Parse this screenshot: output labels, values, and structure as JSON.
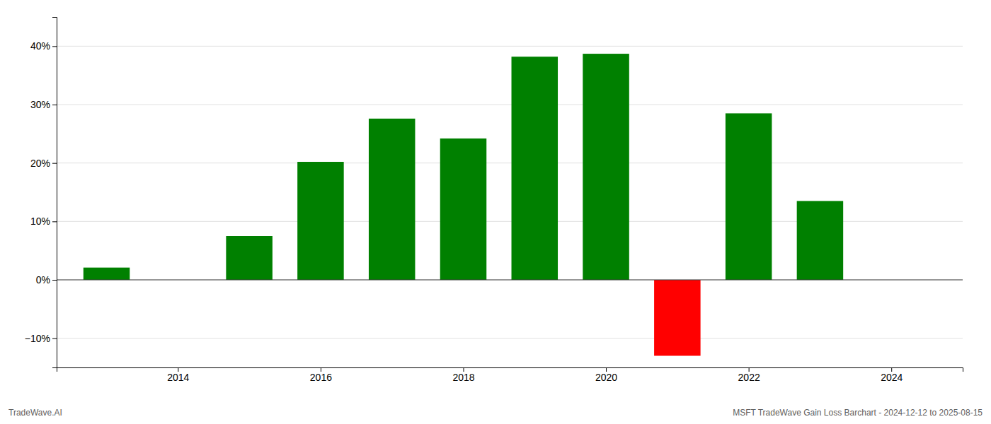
{
  "chart_data": {
    "type": "bar",
    "x": [
      2013,
      2015,
      2016,
      2017,
      2018,
      2019,
      2020,
      2021,
      2022,
      2023
    ],
    "values": [
      2.1,
      7.5,
      20.2,
      27.6,
      24.2,
      38.2,
      38.7,
      -13.0,
      28.5,
      13.5
    ],
    "colors": [
      "#008000",
      "#008000",
      "#008000",
      "#008000",
      "#008000",
      "#008000",
      "#008000",
      "#ff0000",
      "#008000",
      "#008000"
    ],
    "xlim": [
      2012.3,
      2025.0
    ],
    "xticks": [
      2014,
      2016,
      2018,
      2020,
      2022,
      2024
    ],
    "ylim": [
      -15,
      45
    ],
    "yticks": [
      {
        "value": -10,
        "label": "−10%"
      },
      {
        "value": 0,
        "label": "0%"
      },
      {
        "value": 10,
        "label": "10%"
      },
      {
        "value": 20,
        "label": "20%"
      },
      {
        "value": 30,
        "label": "30%"
      },
      {
        "value": 40,
        "label": "40%"
      }
    ],
    "grid": true,
    "annotations": [
      "TradeWave.AI",
      "MSFT TradeWave Gain Loss Barchart - 2024-12-12 to 2025-08-15"
    ]
  }
}
